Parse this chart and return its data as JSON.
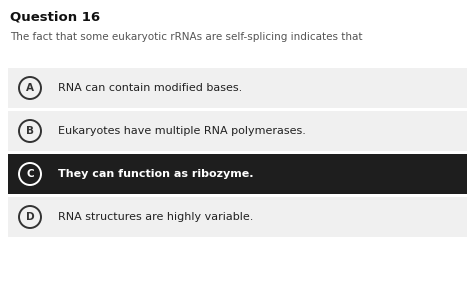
{
  "title": "Question 16",
  "question": "The fact that some eukaryotic rRNAs are self-splicing indicates that",
  "options": [
    {
      "letter": "A",
      "text": "RNA can contain modified bases.",
      "selected": false
    },
    {
      "letter": "B",
      "text": "Eukaryotes have multiple RNA polymerases.",
      "selected": false
    },
    {
      "letter": "C",
      "text": "They can function as ribozyme.",
      "selected": true
    },
    {
      "letter": "D",
      "text": "RNA structures are highly variable.",
      "selected": false
    }
  ],
  "bg_color": "#ffffff",
  "option_bg_normal": "#f0f0f0",
  "option_bg_selected": "#1e1e1e",
  "option_text_normal": "#222222",
  "option_text_selected": "#ffffff",
  "question_color": "#555555",
  "title_fontsize": 9.5,
  "question_fontsize": 7.5,
  "option_fontsize": 8.0,
  "letter_fontsize": 7.5,
  "circle_color_normal": "#333333",
  "circle_color_selected": "#ffffff",
  "fig_width": 4.75,
  "fig_height": 3.04,
  "dpi": 100
}
